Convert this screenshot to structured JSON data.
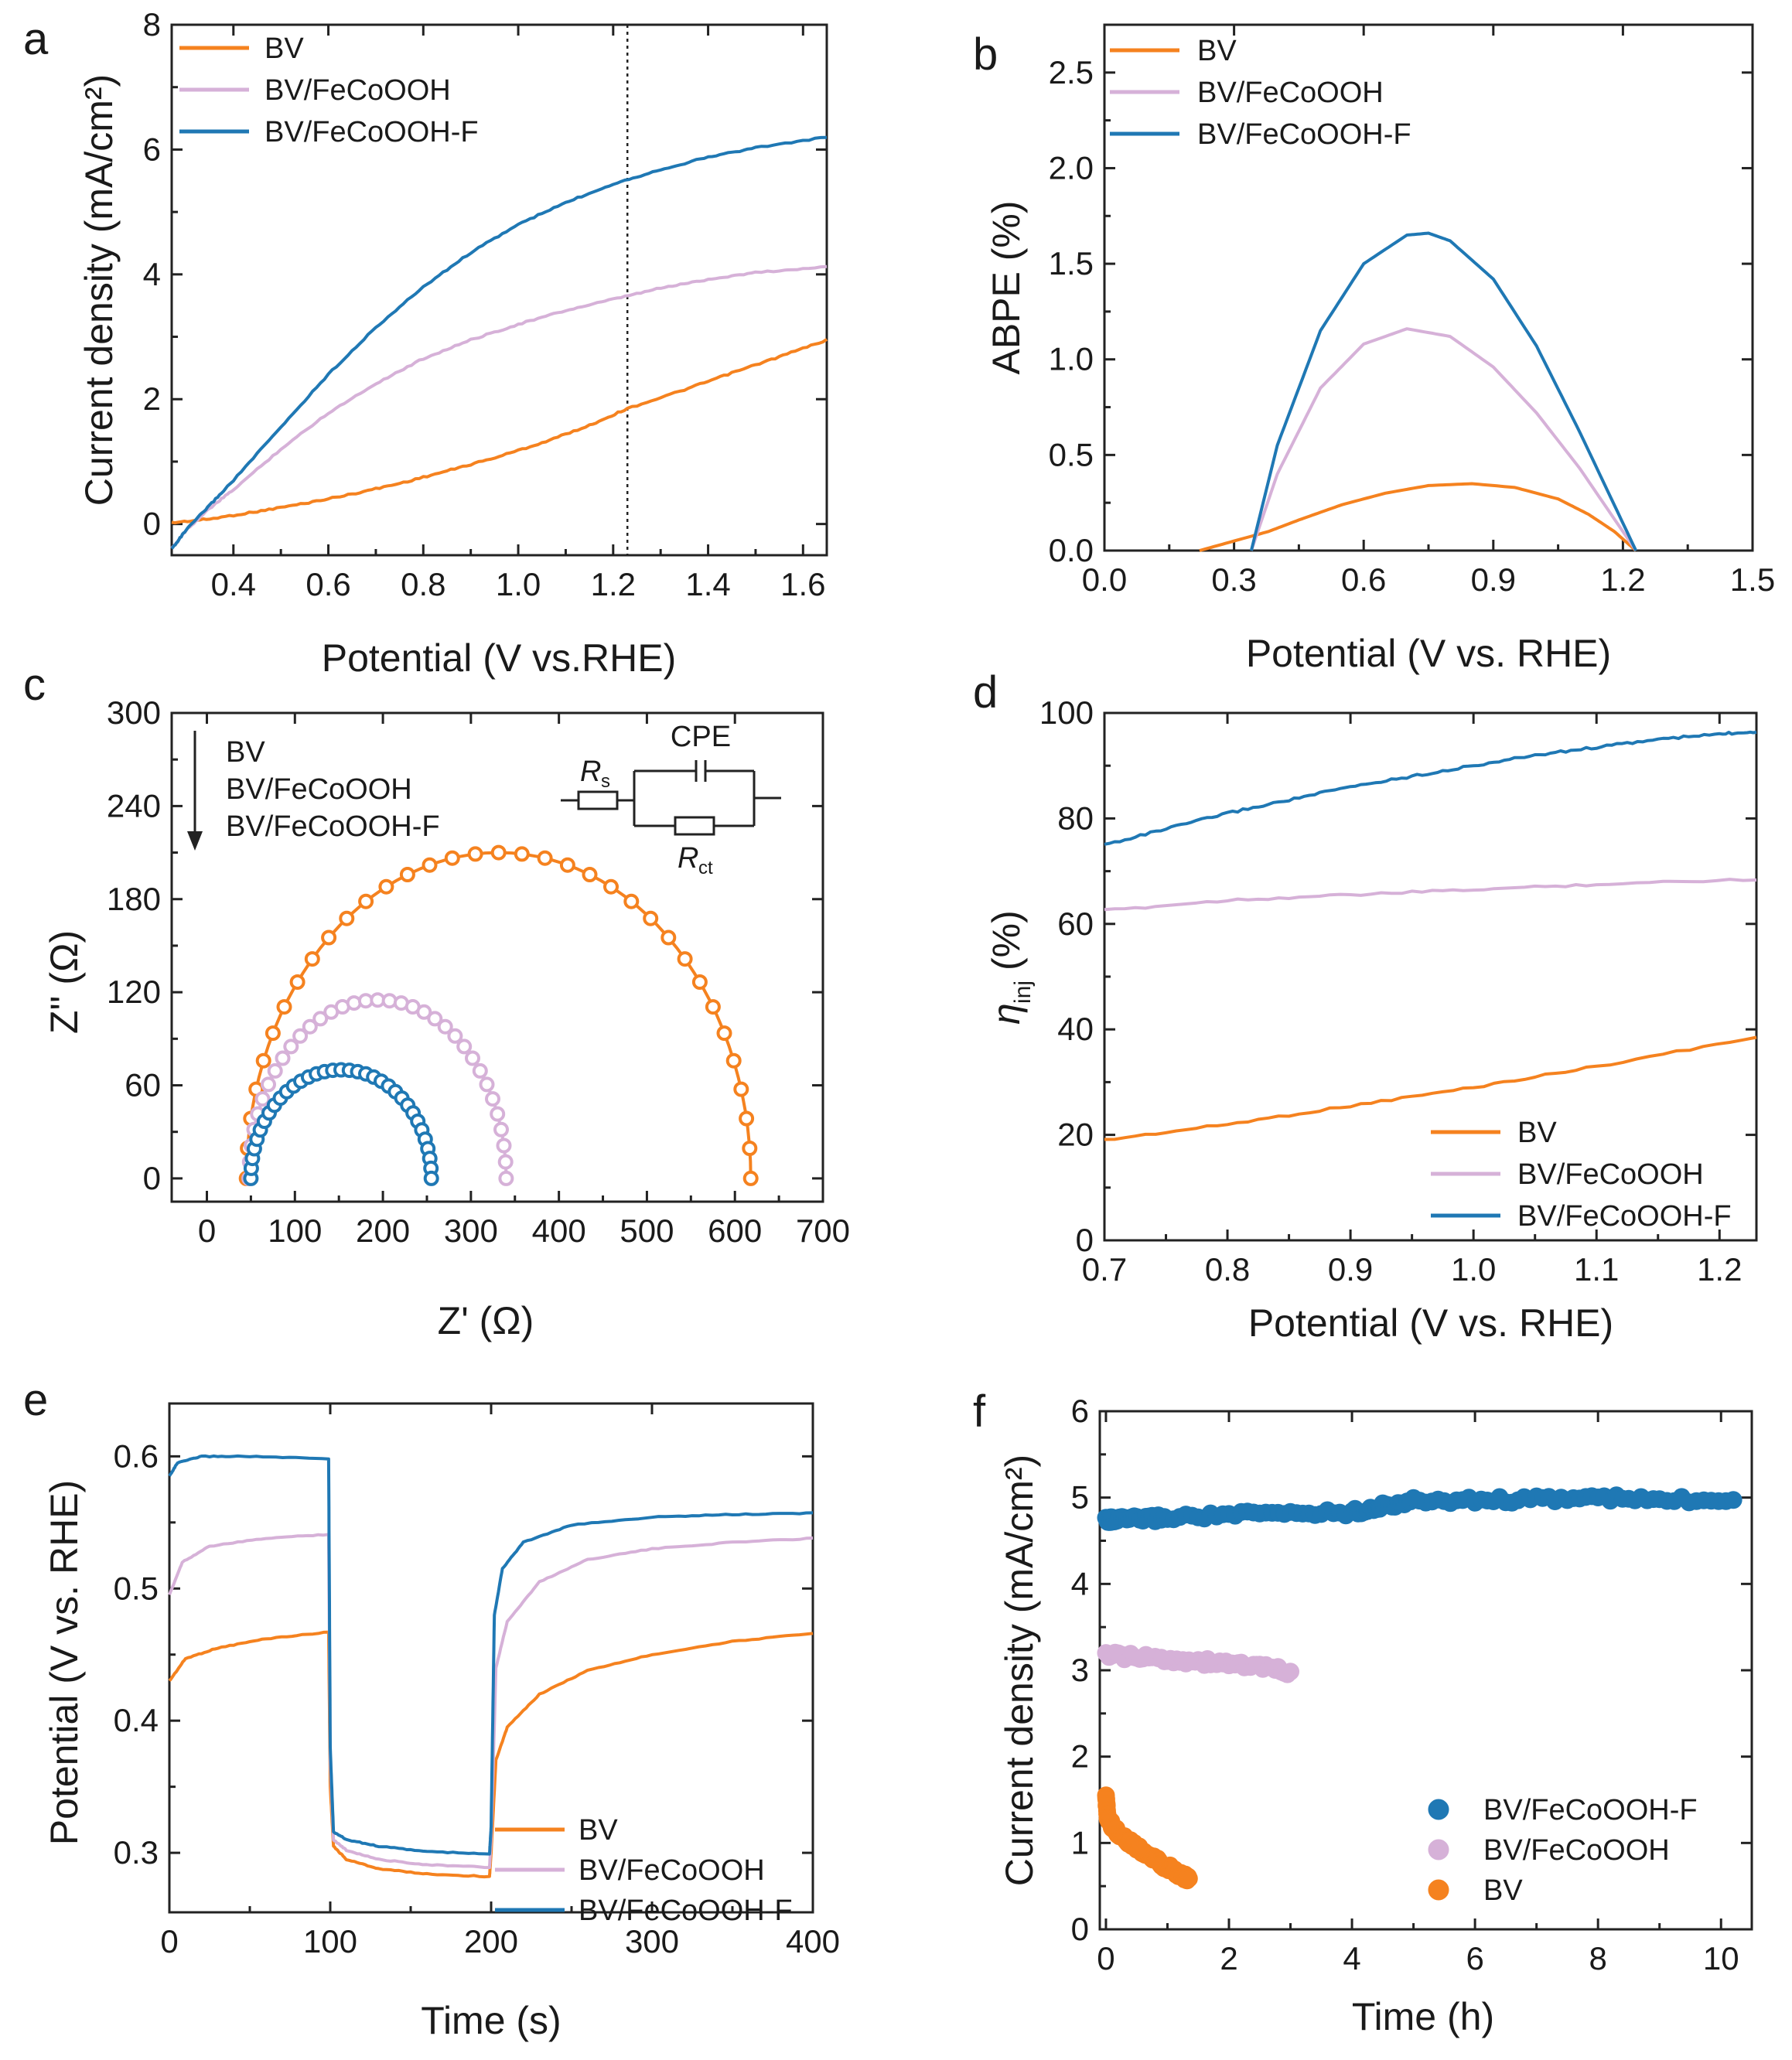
{
  "colors": {
    "BV": "#f5821f",
    "BV/FeCoOOH": "#d6b1d8",
    "BV/FeCoOOH-F": "#1f78b4",
    "axis": "#222222"
  },
  "chart_data": [
    {
      "panel": "a",
      "type": "line",
      "xlabel": "Potential (V vs.RHE)",
      "ylabel": "Current density (mA/cm²)",
      "xlim": [
        0.27,
        1.65
      ],
      "ylim": [
        -0.5,
        8
      ],
      "xticks": [
        0.4,
        0.6,
        0.8,
        1.0,
        1.2,
        1.4,
        1.6
      ],
      "xtick_labels": [
        "0.4",
        "0.6",
        "0.8",
        "1.0",
        "1.2",
        "1.4",
        "1.6"
      ],
      "yticks": [
        0,
        2,
        4,
        6,
        8
      ],
      "ytick_labels": [
        "0",
        "2",
        "4",
        "6",
        "8"
      ],
      "reference_line_x": 1.23,
      "legend_position": "top-left",
      "series": [
        {
          "name": "BV",
          "x": [
            0.27,
            0.35,
            0.45,
            0.55,
            0.65,
            0.75,
            0.85,
            0.95,
            1.05,
            1.15,
            1.23,
            1.35,
            1.45,
            1.55,
            1.65
          ],
          "y": [
            0.02,
            0.08,
            0.2,
            0.33,
            0.48,
            0.65,
            0.85,
            1.06,
            1.3,
            1.58,
            1.85,
            2.15,
            2.42,
            2.68,
            2.95
          ]
        },
        {
          "name": "BV/FeCoOOH",
          "x": [
            0.27,
            0.3,
            0.35,
            0.4,
            0.5,
            0.6,
            0.7,
            0.8,
            0.9,
            1.0,
            1.1,
            1.2,
            1.3,
            1.4,
            1.5,
            1.65
          ],
          "y": [
            -0.4,
            -0.1,
            0.25,
            0.55,
            1.2,
            1.78,
            2.25,
            2.65,
            2.95,
            3.2,
            3.42,
            3.6,
            3.78,
            3.92,
            4.03,
            4.12
          ]
        },
        {
          "name": "BV/FeCoOOH-F",
          "x": [
            0.27,
            0.3,
            0.35,
            0.4,
            0.5,
            0.6,
            0.7,
            0.8,
            0.9,
            1.0,
            1.1,
            1.2,
            1.3,
            1.4,
            1.5,
            1.65
          ],
          "y": [
            -0.4,
            -0.1,
            0.3,
            0.7,
            1.55,
            2.4,
            3.15,
            3.8,
            4.35,
            4.8,
            5.15,
            5.45,
            5.68,
            5.88,
            6.03,
            6.2
          ]
        }
      ]
    },
    {
      "panel": "b",
      "type": "line",
      "xlabel": "Potential (V vs. RHE)",
      "ylabel": "ABPE (%)",
      "xlim": [
        0,
        1.5
      ],
      "ylim": [
        0,
        2.75
      ],
      "xticks": [
        0,
        0.3,
        0.6,
        0.9,
        1.2,
        1.5
      ],
      "xtick_labels": [
        "0.0",
        "0.3",
        "0.6",
        "0.9",
        "1.2",
        "1.5"
      ],
      "yticks": [
        0,
        0.5,
        1.0,
        1.5,
        2.0,
        2.5
      ],
      "ytick_labels": [
        "0.0",
        "0.5",
        "1.0",
        "1.5",
        "2.0",
        "2.5"
      ],
      "legend_position": "top-left",
      "series": [
        {
          "name": "BV",
          "x": [
            0.22,
            0.3,
            0.38,
            0.45,
            0.55,
            0.65,
            0.75,
            0.85,
            0.95,
            1.05,
            1.12,
            1.18,
            1.23
          ],
          "y": [
            0.0,
            0.05,
            0.1,
            0.16,
            0.24,
            0.3,
            0.34,
            0.35,
            0.33,
            0.27,
            0.19,
            0.1,
            0.0
          ]
        },
        {
          "name": "BV/FeCoOOH",
          "x": [
            0.34,
            0.4,
            0.5,
            0.6,
            0.7,
            0.8,
            0.9,
            1.0,
            1.1,
            1.23
          ],
          "y": [
            0.0,
            0.4,
            0.85,
            1.08,
            1.16,
            1.12,
            0.96,
            0.72,
            0.43,
            0.0
          ]
        },
        {
          "name": "BV/FeCoOOH-F",
          "x": [
            0.34,
            0.4,
            0.5,
            0.6,
            0.7,
            0.75,
            0.8,
            0.9,
            1.0,
            1.1,
            1.23
          ],
          "y": [
            0.0,
            0.55,
            1.15,
            1.5,
            1.65,
            1.66,
            1.62,
            1.42,
            1.07,
            0.62,
            0.0
          ]
        }
      ]
    },
    {
      "panel": "c",
      "type": "scatter",
      "xlabel": "Z' (Ω)",
      "ylabel": "Z'' (Ω)",
      "xlim": [
        -40,
        700
      ],
      "ylim": [
        -15,
        300
      ],
      "xticks": [
        0,
        100,
        200,
        300,
        400,
        500,
        600,
        700
      ],
      "xtick_labels": [
        "0",
        "100",
        "200",
        "300",
        "400",
        "500",
        "600",
        "700"
      ],
      "yticks": [
        0,
        60,
        120,
        180,
        240,
        300
      ],
      "ytick_labels": [
        "0",
        "60",
        "120",
        "180",
        "240",
        "300"
      ],
      "legend_title_order": [
        "BV",
        "BV/FeCoOOH",
        "BV/FeCoOOH-F"
      ],
      "circuit_labels": {
        "cpe": "CPE",
        "rs_main": "R",
        "rs_sub": "s",
        "rct_main": "R",
        "rct_sub": "ct"
      },
      "series": [
        {
          "name": "BV",
          "arc": {
            "x_start": 45,
            "x_end": 618,
            "peak": 210
          }
        },
        {
          "name": "BV/FeCoOOH",
          "arc": {
            "x_start": 48,
            "x_end": 340,
            "peak": 115
          }
        },
        {
          "name": "BV/FeCoOOH-F",
          "arc": {
            "x_start": 50,
            "x_end": 255,
            "peak": 70
          }
        }
      ]
    },
    {
      "panel": "d",
      "type": "line",
      "xlabel": "Potential (V vs. RHE)",
      "ylabel_main": "η",
      "ylabel_sub": "inj",
      "ylabel_unit": " (%)",
      "xlim": [
        0.7,
        1.23
      ],
      "ylim": [
        0,
        100
      ],
      "xticks": [
        0.7,
        0.8,
        0.9,
        1.0,
        1.1,
        1.2
      ],
      "xtick_labels": [
        "0.7",
        "0.8",
        "0.9",
        "1.0",
        "1.1",
        "1.2"
      ],
      "yticks": [
        0,
        20,
        40,
        60,
        80,
        100
      ],
      "ytick_labels": [
        "0",
        "20",
        "40",
        "60",
        "80",
        "100"
      ],
      "legend_position": "bottom-right",
      "series": [
        {
          "name": "BV",
          "x": [
            0.7,
            0.8,
            0.9,
            1.0,
            1.1,
            1.23
          ],
          "y": [
            19,
            22,
            25.5,
            29,
            33,
            38.5
          ]
        },
        {
          "name": "BV/FeCoOOH",
          "x": [
            0.7,
            0.8,
            0.9,
            1.0,
            1.1,
            1.23
          ],
          "y": [
            62.5,
            64.5,
            65.5,
            66.5,
            67.5,
            68.5
          ]
        },
        {
          "name": "BV/FeCoOOH-F",
          "x": [
            0.7,
            0.75,
            0.8,
            0.85,
            0.9,
            0.95,
            1.0,
            1.05,
            1.1,
            1.15,
            1.2,
            1.23
          ],
          "y": [
            75,
            78,
            81,
            83.5,
            86,
            88,
            90,
            92,
            93.5,
            95,
            96,
            96.5
          ]
        }
      ]
    },
    {
      "panel": "e",
      "type": "line",
      "xlabel": "Time (s)",
      "ylabel": "Potential (V vs. RHE)",
      "xlim": [
        0,
        400
      ],
      "ylim": [
        0.255,
        0.64
      ],
      "xticks": [
        0,
        100,
        200,
        300,
        400
      ],
      "xtick_labels": [
        "0",
        "100",
        "200",
        "300",
        "400"
      ],
      "yticks": [
        0.3,
        0.4,
        0.5,
        0.6
      ],
      "ytick_labels": [
        "0.3",
        "0.4",
        "0.5",
        "0.6"
      ],
      "legend_position": "bottom-right",
      "series": [
        {
          "name": "BV",
          "x": [
            0,
            10,
            30,
            60,
            99,
            100,
            102,
            110,
            130,
            160,
            199,
            200,
            203,
            210,
            230,
            260,
            300,
            350,
            400
          ],
          "y": [
            0.43,
            0.447,
            0.455,
            0.462,
            0.467,
            0.35,
            0.305,
            0.295,
            0.288,
            0.284,
            0.282,
            0.3,
            0.37,
            0.395,
            0.42,
            0.438,
            0.45,
            0.46,
            0.466
          ]
        },
        {
          "name": "BV/FeCoOOH",
          "x": [
            0,
            8,
            25,
            60,
            99,
            100,
            102,
            110,
            130,
            160,
            199,
            200,
            203,
            210,
            230,
            260,
            300,
            350,
            400
          ],
          "y": [
            0.495,
            0.52,
            0.532,
            0.538,
            0.541,
            0.37,
            0.31,
            0.302,
            0.295,
            0.291,
            0.289,
            0.31,
            0.44,
            0.475,
            0.505,
            0.522,
            0.53,
            0.535,
            0.538
          ]
        },
        {
          "name": "BV/FeCoOOH-F",
          "x": [
            0,
            5,
            20,
            50,
            99,
            100,
            102,
            110,
            130,
            160,
            199,
            200,
            202,
            207,
            220,
            250,
            300,
            350,
            400
          ],
          "y": [
            0.585,
            0.595,
            0.6,
            0.6,
            0.598,
            0.38,
            0.316,
            0.31,
            0.305,
            0.301,
            0.299,
            0.32,
            0.48,
            0.515,
            0.535,
            0.548,
            0.554,
            0.556,
            0.557
          ]
        }
      ]
    },
    {
      "panel": "f",
      "type": "scatter",
      "xlabel": "Time (h)",
      "ylabel": "Current density (mA/cm²)",
      "xlim": [
        -0.1,
        10.5
      ],
      "ylim": [
        0,
        6
      ],
      "xticks": [
        0,
        2,
        4,
        6,
        8,
        10
      ],
      "xtick_labels": [
        "0",
        "2",
        "4",
        "6",
        "8",
        "10"
      ],
      "yticks": [
        0,
        1,
        2,
        3,
        4,
        5,
        6
      ],
      "ytick_labels": [
        "0",
        "1",
        "2",
        "3",
        "4",
        "5",
        "6"
      ],
      "legend_position": "bottom-right",
      "series": [
        {
          "name": "BV/FeCoOOH-F",
          "x": [
            0,
            0.1,
            0.5,
            1,
            2,
            3,
            4,
            4.5,
            5,
            6,
            7,
            8,
            9,
            10.2
          ],
          "y": [
            4.75,
            4.74,
            4.75,
            4.77,
            4.8,
            4.82,
            4.83,
            4.9,
            4.96,
            4.97,
            4.98,
            5.0,
            4.97,
            4.98
          ]
        },
        {
          "name": "BV/FeCoOOH",
          "x": [
            0,
            0.5,
            1,
            1.5,
            2,
            2.5,
            3
          ],
          "y": [
            3.18,
            3.15,
            3.13,
            3.1,
            3.08,
            3.04,
            2.98
          ]
        },
        {
          "name": "BV",
          "x": [
            0,
            0.03,
            0.1,
            0.2,
            0.4,
            0.6,
            0.8,
            1.0,
            1.2,
            1.35
          ],
          "y": [
            1.52,
            1.3,
            1.2,
            1.12,
            1.0,
            0.9,
            0.8,
            0.72,
            0.64,
            0.58
          ]
        }
      ]
    }
  ],
  "panels": {
    "a": {
      "letter": "a",
      "x_label": "Potential (V vs.RHE)",
      "y_label": "Current density (mA/cm²)",
      "legend": [
        "BV",
        "BV/FeCoOOH",
        "BV/FeCoOOH-F"
      ]
    },
    "b": {
      "letter": "b",
      "x_label": "Potential (V vs. RHE)",
      "y_label": "ABPE (%)",
      "legend": [
        "BV",
        "BV/FeCoOOH",
        "BV/FeCoOOH-F"
      ]
    },
    "c": {
      "letter": "c",
      "x_label": "Z' (Ω)",
      "y_label": "Z'' (Ω)",
      "legend": [
        "BV",
        "BV/FeCoOOH",
        "BV/FeCoOOH-F"
      ]
    },
    "d": {
      "letter": "d",
      "x_label": "Potential (V vs. RHE)",
      "legend": [
        "BV",
        "BV/FeCoOOH",
        "BV/FeCoOOH-F"
      ]
    },
    "e": {
      "letter": "e",
      "x_label": "Time (s)",
      "y_label": "Potential (V vs. RHE)",
      "legend": [
        "BV",
        "BV/FeCoOOH",
        "BV/FeCoOOH-F"
      ]
    },
    "f": {
      "letter": "f",
      "x_label": "Time (h)",
      "y_label": "Current density (mA/cm²)",
      "legend": [
        "BV/FeCoOOH-F",
        "BV/FeCoOOH",
        "BV"
      ]
    }
  }
}
